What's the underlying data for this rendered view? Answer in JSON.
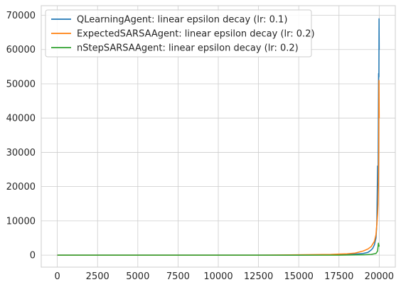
{
  "chart_data": {
    "type": "line",
    "title": "",
    "xlabel": "",
    "ylabel": "",
    "xlim": [
      -1000,
      21000
    ],
    "ylim": [
      -3500,
      72800
    ],
    "grid": true,
    "legend_position": "top-left",
    "x_ticks": [
      0,
      2500,
      5000,
      7500,
      10000,
      12500,
      15000,
      17500,
      20000
    ],
    "y_ticks": [
      0,
      10000,
      20000,
      30000,
      40000,
      50000,
      60000,
      70000
    ],
    "series": [
      {
        "name": "QLearningAgent: linear epsilon decay (lr: 0.1)",
        "color": "#1f77b4",
        "x": [
          0,
          2500,
          5000,
          7500,
          10000,
          12500,
          15000,
          17000,
          18000,
          18500,
          19000,
          19300,
          19500,
          19600,
          19700,
          19800,
          19850,
          19900,
          19930,
          19960,
          19980,
          19990,
          20000
        ],
        "y": [
          0,
          0,
          0,
          0,
          0,
          0,
          0,
          100,
          200,
          300,
          500,
          800,
          1500,
          2000,
          3000,
          5000,
          9000,
          26000,
          22000,
          53000,
          52000,
          69000,
          60000
        ]
      },
      {
        "name": "ExpectedSARSAAgent: linear epsilon decay (lr: 0.2)",
        "color": "#ff7f0e",
        "x": [
          0,
          2500,
          5000,
          7500,
          10000,
          12500,
          15000,
          17000,
          17500,
          18000,
          18500,
          19000,
          19300,
          19500,
          19700,
          19800,
          19850,
          19900,
          19930,
          19950,
          19970,
          19985,
          20000
        ],
        "y": [
          0,
          0,
          0,
          0,
          0,
          0,
          100,
          200,
          300,
          400,
          600,
          1200,
          1800,
          2500,
          4000,
          6000,
          9000,
          12000,
          15000,
          20000,
          30000,
          51000,
          40000
        ]
      },
      {
        "name": "nStepSARSAAgent: linear epsilon decay (lr: 0.2)",
        "color": "#2ca02c",
        "x": [
          0,
          2500,
          5000,
          7500,
          10000,
          12500,
          15000,
          17500,
          19000,
          19500,
          19800,
          19900,
          19950,
          20000
        ],
        "y": [
          0,
          0,
          0,
          0,
          0,
          0,
          0,
          0,
          100,
          200,
          500,
          1200,
          3500,
          2500
        ]
      }
    ]
  }
}
